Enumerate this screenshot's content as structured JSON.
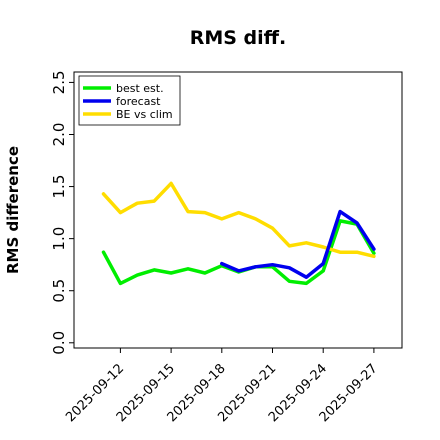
{
  "chart_data": {
    "type": "line",
    "title": "RMS diff.",
    "xlabel": "",
    "ylabel": "RMS difference",
    "ylim": [
      -0.05,
      2.6
    ],
    "yticks": [
      "0.0",
      "0.5",
      "1.0",
      "1.5",
      "2.0",
      "2.5"
    ],
    "x": [
      "2025-09-11",
      "2025-09-12",
      "2025-09-13",
      "2025-09-14",
      "2025-09-15",
      "2025-09-16",
      "2025-09-17",
      "2025-09-18",
      "2025-09-19",
      "2025-09-20",
      "2025-09-21",
      "2025-09-22",
      "2025-09-23",
      "2025-09-24",
      "2025-09-25",
      "2025-09-26",
      "2025-09-27"
    ],
    "xticks": [
      "2025-09-12",
      "2025-09-15",
      "2025-09-18",
      "2025-09-21",
      "2025-09-24",
      "2025-09-27"
    ],
    "highlight_tick": "2025-09-18",
    "highlight_color": "#2e8b2e",
    "legend_position": "upper-left",
    "grid": false,
    "series": [
      {
        "name": "best est.",
        "color": "#00ee00",
        "values": [
          0.87,
          0.57,
          0.65,
          0.7,
          0.67,
          0.71,
          0.67,
          0.74,
          0.68,
          0.73,
          0.73,
          0.59,
          0.57,
          0.69,
          1.17,
          1.14,
          0.86
        ]
      },
      {
        "name": "forecast",
        "color": "#0000ee",
        "values": [
          null,
          null,
          null,
          null,
          null,
          null,
          null,
          0.76,
          0.69,
          0.73,
          0.75,
          0.72,
          0.63,
          0.76,
          1.26,
          1.15,
          0.9
        ]
      },
      {
        "name": "BE vs clim",
        "color": "#ffdd00",
        "values": [
          1.43,
          1.25,
          1.34,
          1.36,
          1.53,
          1.26,
          1.25,
          1.19,
          1.25,
          1.19,
          1.1,
          0.93,
          0.96,
          0.92,
          0.87,
          0.87,
          0.83
        ]
      }
    ]
  }
}
